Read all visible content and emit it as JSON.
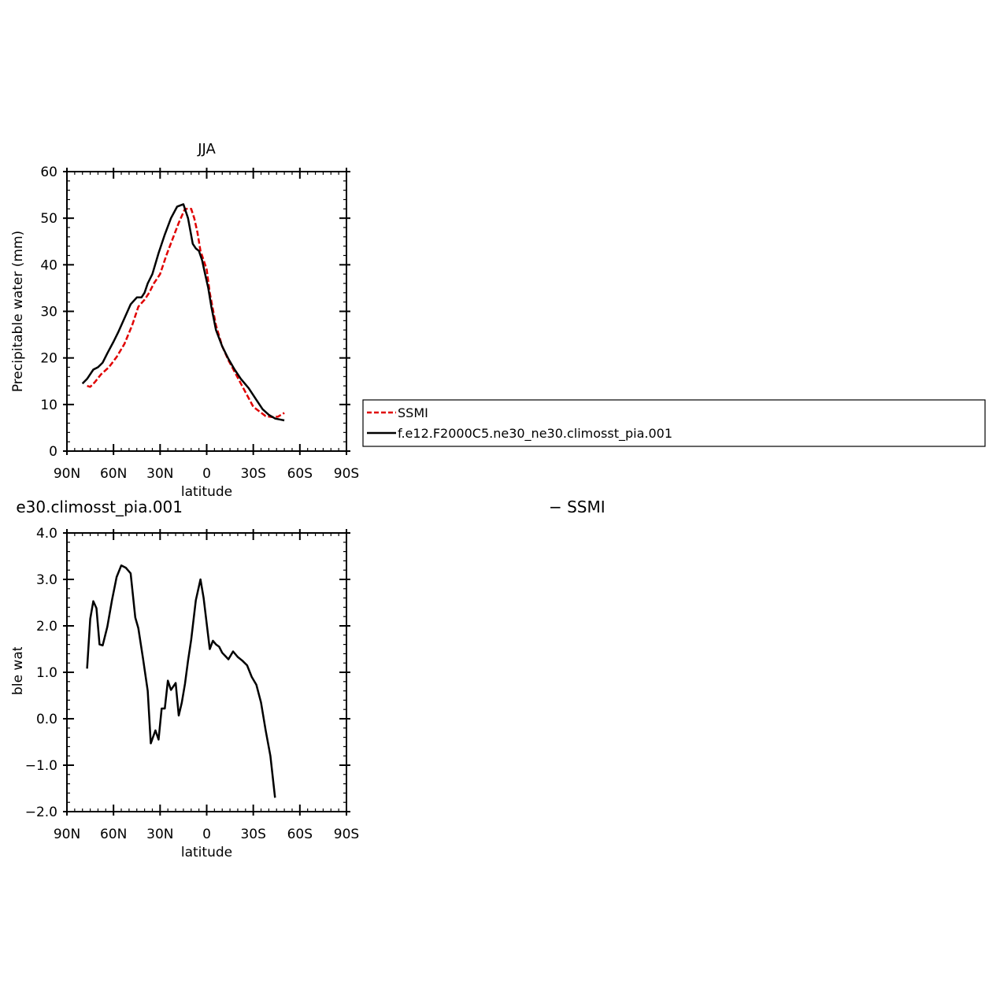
{
  "chart_data": [
    {
      "type": "line",
      "title": "JJA",
      "xlabel": "latitude",
      "ylabel": "Precipitable water (mm)",
      "xlim": [
        90,
        -90
      ],
      "ylim": [
        0,
        60
      ],
      "x_ticks": [
        {
          "value": 90,
          "label": "90N"
        },
        {
          "value": 60,
          "label": "60N"
        },
        {
          "value": 30,
          "label": "30N"
        },
        {
          "value": 0,
          "label": "0"
        },
        {
          "value": -30,
          "label": "30S"
        },
        {
          "value": -60,
          "label": "60S"
        },
        {
          "value": -90,
          "label": "90S"
        }
      ],
      "y_ticks": [
        {
          "value": 0,
          "label": "0"
        },
        {
          "value": 10,
          "label": "10"
        },
        {
          "value": 20,
          "label": "20"
        },
        {
          "value": 30,
          "label": "30"
        },
        {
          "value": 40,
          "label": "40"
        },
        {
          "value": 50,
          "label": "50"
        },
        {
          "value": 60,
          "label": "60"
        }
      ],
      "series": [
        {
          "name": "SSMI",
          "color": "#e00000",
          "dash": "dashed",
          "x": [
            77,
            75,
            72,
            68,
            63,
            58,
            53,
            48,
            44,
            40,
            37,
            34,
            30,
            26,
            22,
            18,
            14,
            10,
            8,
            6,
            4,
            2,
            0,
            -2,
            -6,
            -10,
            -14,
            -18,
            -22,
            -26,
            -30,
            -34,
            -38,
            -42,
            -46,
            -50,
            -54,
            -58,
            -60,
            -62,
            -64,
            -66
          ],
          "y": [
            14.0,
            13.8,
            14.8,
            16.5,
            18.0,
            20.2,
            23.0,
            27.0,
            31.0,
            32.5,
            34.0,
            36.0,
            38.0,
            42.0,
            45.5,
            49.0,
            52.0,
            52.0,
            50.0,
            47.0,
            43.0,
            41.0,
            39.0,
            34.0,
            27.0,
            22.5,
            19.5,
            17.0,
            14.5,
            12.0,
            9.5,
            8.5,
            7.5,
            7.3,
            7.4,
            8.2,
            null,
            null,
            null,
            null,
            null,
            null
          ]
        },
        {
          "name": "f.e12.F2000C5.ne30_ne30.climosst_pia.001",
          "color": "#000000",
          "dash": "solid",
          "x": [
            80,
            77,
            73,
            70,
            67,
            64,
            60,
            57,
            53,
            49,
            45,
            42,
            40,
            38,
            35,
            31,
            27,
            23,
            19,
            15,
            12,
            9,
            7,
            5,
            3,
            1,
            -1,
            -3,
            -6,
            -10,
            -14,
            -18,
            -22,
            -27,
            -32,
            -36,
            -40,
            -44,
            -47,
            -50,
            -54,
            -58,
            -61,
            -63,
            -66
          ],
          "y": [
            14.5,
            15.5,
            17.5,
            18.0,
            19.0,
            21.0,
            23.5,
            25.5,
            28.5,
            31.5,
            33.0,
            33.0,
            34.0,
            36.0,
            38.0,
            42.5,
            46.5,
            50.0,
            52.5,
            53.0,
            50.0,
            44.5,
            43.5,
            43.0,
            41.0,
            38.0,
            35.0,
            31.0,
            26.0,
            22.5,
            19.8,
            17.5,
            15.5,
            13.5,
            11.0,
            9.0,
            7.8,
            7.0,
            6.8,
            6.6,
            null,
            null,
            null,
            null,
            null
          ]
        }
      ],
      "legend": {
        "position": "right",
        "entries": [
          "SSMI",
          "f.e12.F2000C5.ne30_ne30.climosst_pia.001"
        ]
      }
    },
    {
      "type": "line",
      "title": "e30.climosst_pia.001",
      "title_right": "− SSMI",
      "xlabel": "latitude",
      "ylabel": "Precipitable water (mm)",
      "xlim": [
        90,
        -90
      ],
      "ylim": [
        -2.0,
        4.0
      ],
      "x_ticks": [
        {
          "value": 90,
          "label": "90N"
        },
        {
          "value": 60,
          "label": "60N"
        },
        {
          "value": 30,
          "label": "30N"
        },
        {
          "value": 0,
          "label": "0"
        },
        {
          "value": -30,
          "label": "30S"
        },
        {
          "value": -60,
          "label": "60S"
        },
        {
          "value": -90,
          "label": "90S"
        }
      ],
      "y_ticks": [
        {
          "value": -2.0,
          "label": "−2.0"
        },
        {
          "value": -1.0,
          "label": "−1.0"
        },
        {
          "value": 0.0,
          "label": "0.0"
        },
        {
          "value": 1.0,
          "label": "1.0"
        },
        {
          "value": 2.0,
          "label": "2.0"
        },
        {
          "value": 3.0,
          "label": "3.0"
        },
        {
          "value": 4.0,
          "label": "4.0"
        }
      ],
      "series": [
        {
          "name": "",
          "color": "#000000",
          "dash": "solid",
          "x": [
            77,
            75,
            73,
            71,
            69,
            67,
            64,
            61,
            58,
            55,
            52,
            49,
            46,
            44,
            41,
            38,
            36,
            33,
            31,
            29,
            27,
            25,
            23,
            20,
            18,
            16,
            14,
            12,
            10,
            7,
            4,
            2,
            -2,
            -4,
            -6,
            -8,
            -10,
            -12,
            -14,
            -17,
            -20,
            -23,
            -26,
            -29,
            -32,
            -35,
            -38,
            -41,
            -44,
            -47,
            -50,
            -53,
            -55,
            -57,
            -59,
            -62,
            -65
          ],
          "y": [
            1.08,
            2.15,
            2.53,
            2.38,
            1.6,
            1.58,
            1.98,
            2.55,
            3.05,
            3.3,
            3.25,
            3.13,
            2.18,
            1.95,
            1.3,
            0.6,
            -0.53,
            -0.25,
            -0.45,
            0.22,
            0.22,
            0.82,
            0.62,
            0.77,
            0.07,
            0.35,
            0.75,
            1.25,
            1.7,
            2.55,
            3.0,
            2.6,
            1.5,
            1.68,
            1.6,
            1.55,
            1.42,
            1.35,
            1.28,
            1.45,
            1.33,
            1.25,
            1.15,
            0.9,
            0.73,
            0.35,
            -0.25,
            -0.8,
            -1.7,
            null,
            null,
            null,
            null,
            null,
            null,
            null,
            null
          ]
        }
      ]
    }
  ]
}
